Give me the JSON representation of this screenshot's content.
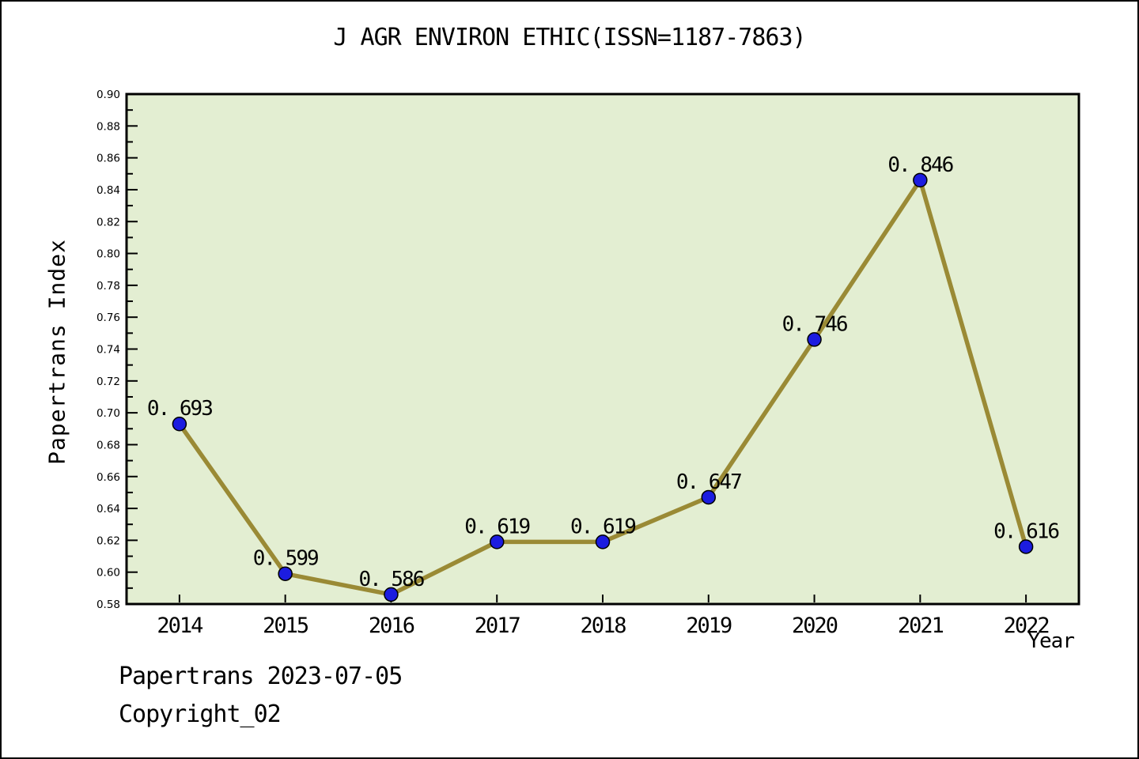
{
  "chart_data": {
    "type": "line",
    "title": "J AGR ENVIRON ETHIC(ISSN=1187-7863)",
    "xlabel": "Year",
    "ylabel": "Papertrans Index",
    "categories": [
      "2014",
      "2015",
      "2016",
      "2017",
      "2018",
      "2019",
      "2020",
      "2021",
      "2022"
    ],
    "series": [
      {
        "name": "Papertrans Index",
        "values": [
          0.693,
          0.599,
          0.586,
          0.619,
          0.619,
          0.647,
          0.746,
          0.846,
          0.616
        ],
        "point_labels": [
          "0. 693",
          "0. 599",
          "0. 586",
          "0. 619",
          "0. 619",
          "0. 647",
          "0. 746",
          "0. 846",
          "0. 616"
        ]
      }
    ],
    "ylim": [
      0.58,
      0.9
    ],
    "y_tick_labels": [
      "0.58",
      "0.60",
      "0.62",
      "0.64",
      "0.66",
      "0.68",
      "0.70",
      "0.72",
      "0.74",
      "0.76",
      "0.78",
      "0.80",
      "0.82",
      "0.84",
      "0.86",
      "0.88",
      "0.90"
    ],
    "y_minor_step": 0.01,
    "grid": false,
    "legend_position": "none",
    "colors": {
      "plot_bg": "#e3eed2",
      "line": "#9a8a35",
      "marker_fill": "#1c1ce0",
      "marker_edge": "#000000",
      "axis": "#000000",
      "text": "#000000"
    }
  },
  "footer": {
    "line1": "Papertrans 2023-07-05",
    "line2": "Copyright_02"
  }
}
